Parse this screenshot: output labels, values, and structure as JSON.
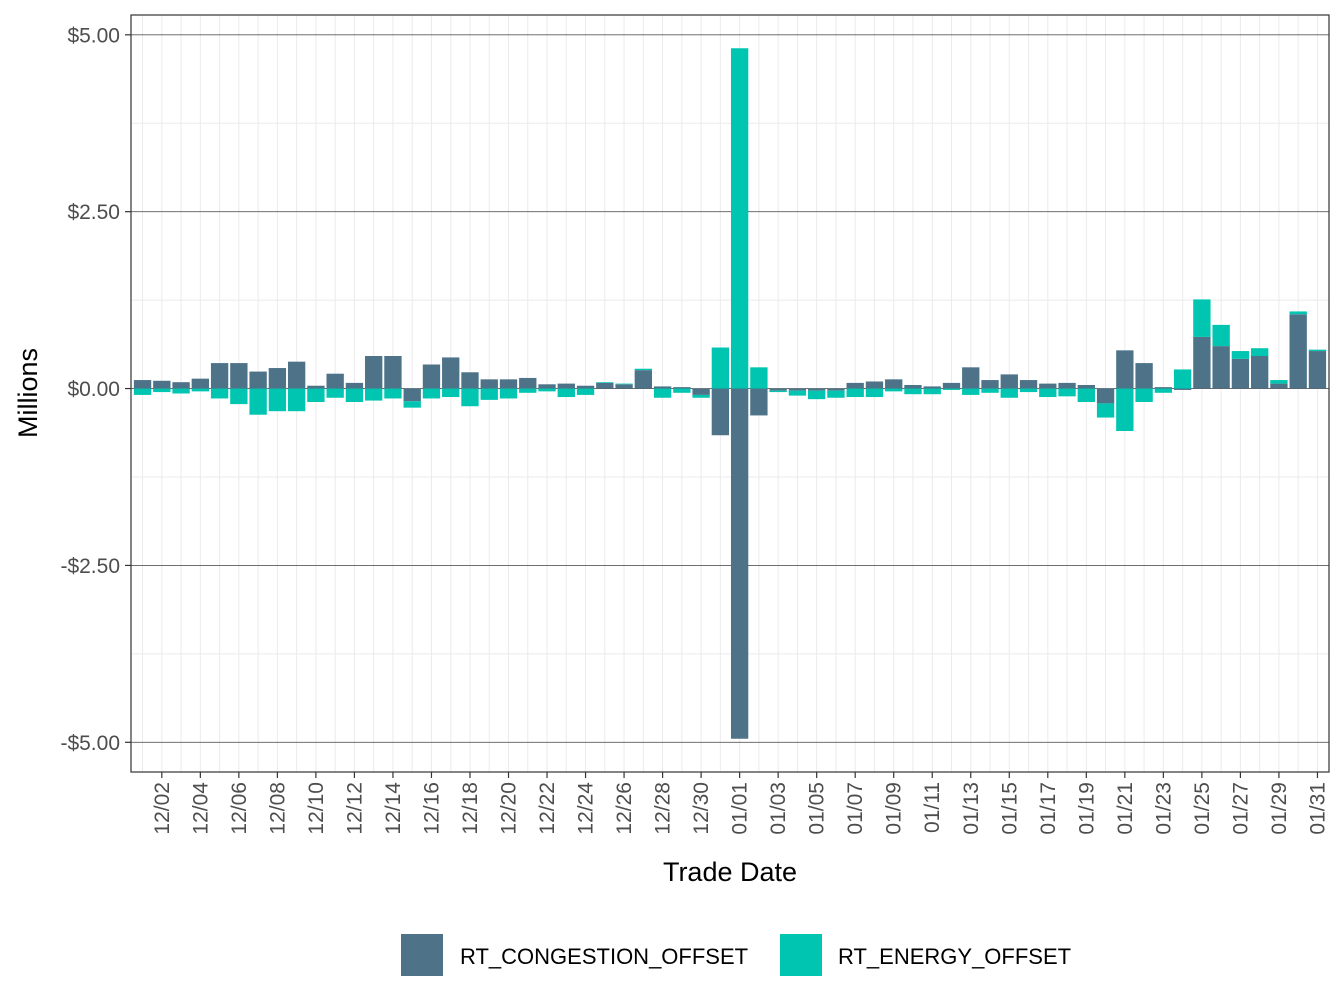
{
  "chart_data": {
    "type": "bar",
    "stacking": "stacked-diverging",
    "xlabel": "Trade Date",
    "ylabel": "Millions",
    "ylim": [
      -5.42,
      5.28
    ],
    "y_ticks": [
      {
        "value": 5.0,
        "label": "$5.00"
      },
      {
        "value": 2.5,
        "label": "$2.50"
      },
      {
        "value": 0.0,
        "label": "$0.00"
      },
      {
        "value": -2.5,
        "label": "-$2.50"
      },
      {
        "value": -5.0,
        "label": "-$5.00"
      }
    ],
    "x_tick_labels": [
      "12/02",
      "12/04",
      "12/06",
      "12/08",
      "12/10",
      "12/12",
      "12/14",
      "12/16",
      "12/18",
      "12/20",
      "12/22",
      "12/24",
      "12/26",
      "12/28",
      "12/30",
      "01/01",
      "01/03",
      "01/05",
      "01/07",
      "01/09",
      "01/11",
      "01/13",
      "01/15",
      "01/17",
      "01/19",
      "01/21",
      "01/23",
      "01/25",
      "01/27",
      "01/29",
      "01/31"
    ],
    "categories": [
      "12/01",
      "12/02",
      "12/03",
      "12/04",
      "12/05",
      "12/06",
      "12/07",
      "12/08",
      "12/09",
      "12/10",
      "12/11",
      "12/12",
      "12/13",
      "12/14",
      "12/15",
      "12/16",
      "12/17",
      "12/18",
      "12/19",
      "12/20",
      "12/21",
      "12/22",
      "12/23",
      "12/24",
      "12/25",
      "12/26",
      "12/27",
      "12/28",
      "12/29",
      "12/30",
      "12/31",
      "01/01",
      "01/02",
      "01/03",
      "01/04",
      "01/05",
      "01/06",
      "01/07",
      "01/08",
      "01/09",
      "01/10",
      "01/11",
      "01/12",
      "01/13",
      "01/14",
      "01/15",
      "01/16",
      "01/17",
      "01/18",
      "01/19",
      "01/20",
      "01/21",
      "01/22",
      "01/23",
      "01/24",
      "01/25",
      "01/26",
      "01/27",
      "01/28",
      "01/29",
      "01/30",
      "01/31"
    ],
    "series": [
      {
        "name": "RT_CONGESTION_OFFSET",
        "color": "#4e7389",
        "values": [
          0.12,
          0.11,
          0.09,
          0.14,
          0.36,
          0.36,
          0.24,
          0.29,
          0.38,
          0.04,
          0.21,
          0.08,
          0.46,
          0.46,
          -0.18,
          0.34,
          0.44,
          0.23,
          0.13,
          0.13,
          0.15,
          0.06,
          0.07,
          0.04,
          0.08,
          0.06,
          0.26,
          0.03,
          0.02,
          -0.09,
          -0.66,
          -4.95,
          -0.38,
          -0.03,
          -0.03,
          -0.03,
          -0.03,
          0.08,
          0.1,
          0.13,
          0.05,
          0.03,
          0.08,
          0.3,
          0.12,
          0.2,
          0.12,
          0.07,
          0.08,
          0.05,
          -0.21,
          0.54,
          0.36,
          0.02,
          -0.02,
          0.73,
          0.6,
          0.42,
          0.46,
          0.07,
          1.05,
          0.53
        ]
      },
      {
        "name": "RT_ENERGY_OFFSET",
        "color": "#00c5b0",
        "values": [
          -0.09,
          -0.05,
          -0.07,
          -0.04,
          -0.14,
          -0.22,
          -0.37,
          -0.32,
          -0.32,
          -0.19,
          -0.13,
          -0.19,
          -0.17,
          -0.14,
          -0.09,
          -0.14,
          -0.12,
          -0.25,
          -0.16,
          -0.14,
          -0.06,
          -0.04,
          -0.12,
          -0.09,
          0.01,
          0.01,
          0.02,
          -0.13,
          -0.06,
          -0.04,
          0.58,
          4.81,
          0.3,
          -0.02,
          -0.07,
          -0.12,
          -0.1,
          -0.12,
          -0.12,
          -0.04,
          -0.08,
          -0.08,
          -0.02,
          -0.09,
          -0.06,
          -0.13,
          -0.05,
          -0.12,
          -0.11,
          -0.19,
          -0.2,
          -0.6,
          -0.19,
          -0.06,
          0.27,
          0.53,
          0.3,
          0.11,
          0.11,
          0.05,
          0.04,
          0.02
        ]
      }
    ]
  }
}
